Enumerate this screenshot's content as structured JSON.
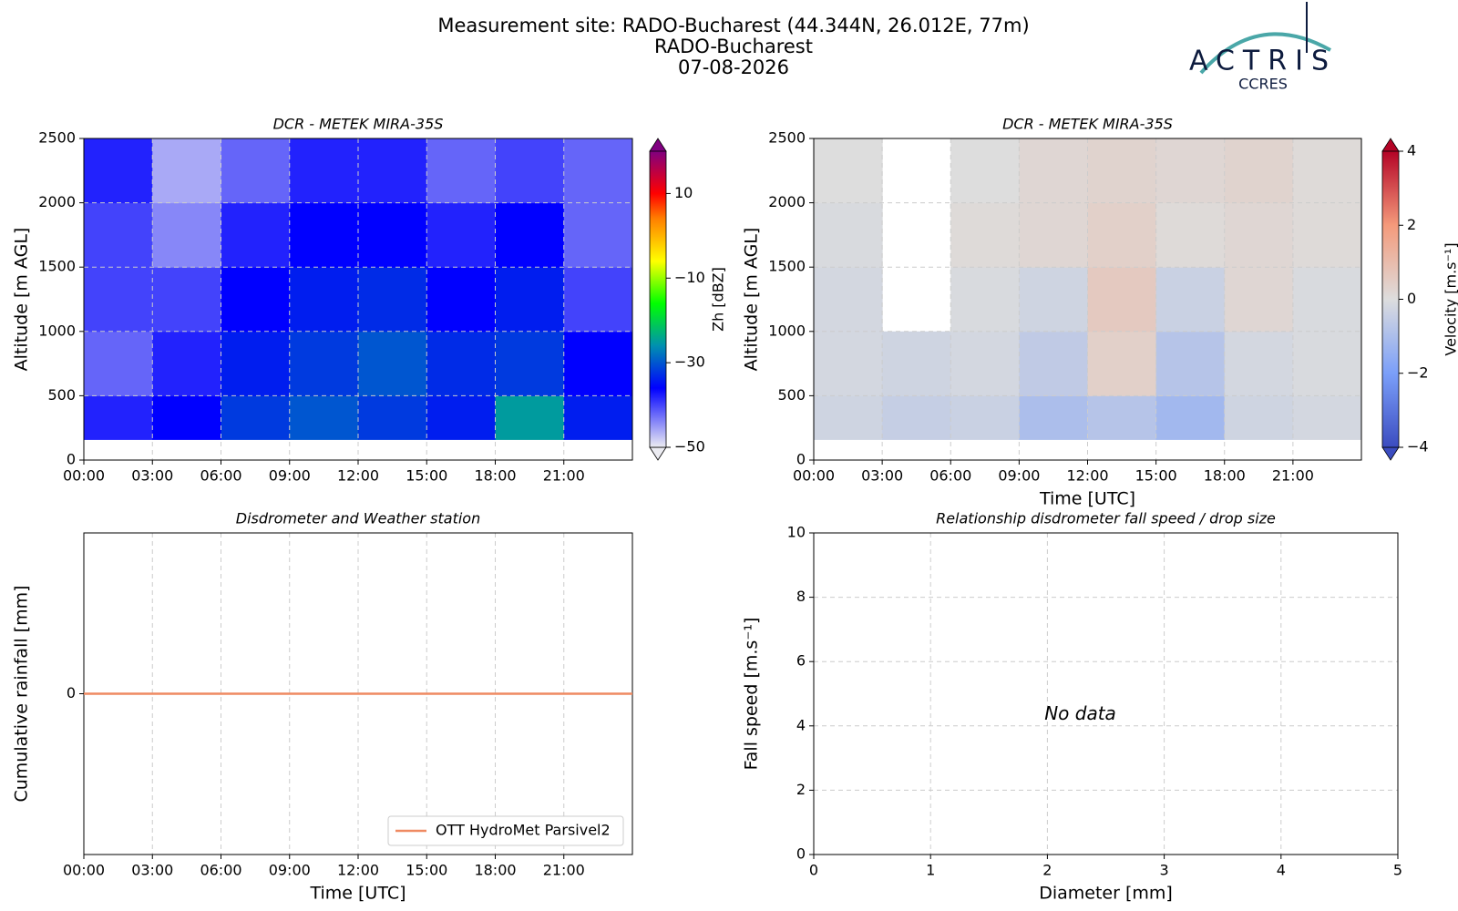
{
  "header": {
    "title": "Measurement site: RADO-Bucharest (44.344N, 26.012E, 77m)",
    "subtitle": "RADO-Bucharest",
    "date": "07-08-2026"
  },
  "logo": {
    "name": "ACTRIS",
    "sub": "CCRES"
  },
  "chart_data": [
    {
      "type": "heatmap",
      "title": "DCR - METEK MIRA-35S",
      "y_label": "Altitude [m AGL]",
      "xlim": [
        0,
        24
      ],
      "xticks": [
        {
          "value": 0,
          "label": "00:00"
        },
        {
          "value": 3,
          "label": "03:00"
        },
        {
          "value": 6,
          "label": "06:00"
        },
        {
          "value": 9,
          "label": "09:00"
        },
        {
          "value": 12,
          "label": "12:00"
        },
        {
          "value": 15,
          "label": "15:00"
        },
        {
          "value": 18,
          "label": "18:00"
        },
        {
          "value": 21,
          "label": "21:00"
        }
      ],
      "ylim": [
        0,
        2500
      ],
      "yticks": [
        0,
        500,
        1000,
        1500,
        2000,
        2500
      ],
      "grid": true,
      "x_bins": [
        0,
        3,
        6,
        9,
        12,
        15,
        18,
        21,
        24
      ],
      "y_bins": [
        160,
        500,
        1000,
        1500,
        2000,
        2500
      ],
      "values": [
        [
          -38,
          -36,
          -32,
          -30,
          -32,
          -34,
          -25,
          -34
        ],
        [
          -42,
          -38,
          -34,
          -32,
          -30,
          -33,
          -32,
          -36
        ],
        [
          -40,
          -40,
          -36,
          -34,
          -33,
          -36,
          -34,
          -40
        ],
        [
          -40,
          -44,
          -38,
          -36,
          -36,
          -38,
          -36,
          -42
        ],
        [
          -38,
          -46,
          -42,
          -38,
          -38,
          -42,
          -40,
          -42
        ]
      ],
      "colorbar": {
        "label": "Zh [dBZ]",
        "lim": [
          -50,
          20
        ],
        "ticks": [
          {
            "value": -50,
            "label": "−50"
          },
          {
            "value": -30,
            "label": "−30"
          },
          {
            "value": -10,
            "label": "−10"
          },
          10
        ],
        "colors": [
          [
            -50,
            "#ececf2"
          ],
          [
            -36,
            "#0000ff"
          ],
          [
            -26,
            "#0090b0"
          ],
          [
            -16,
            "#00ff00"
          ],
          [
            -6,
            "#ffff00"
          ],
          [
            4,
            "#ff8000"
          ],
          [
            10,
            "#ff0000"
          ],
          [
            20,
            "#800080"
          ]
        ]
      }
    },
    {
      "type": "heatmap",
      "title": "DCR - METEK MIRA-35S",
      "y_label": "Altitude [m AGL]",
      "x_label": "Time [UTC]",
      "xlim": [
        0,
        24
      ],
      "xticks": [
        {
          "value": 0,
          "label": "00:00"
        },
        {
          "value": 3,
          "label": "03:00"
        },
        {
          "value": 6,
          "label": "06:00"
        },
        {
          "value": 9,
          "label": "09:00"
        },
        {
          "value": 12,
          "label": "12:00"
        },
        {
          "value": 15,
          "label": "15:00"
        },
        {
          "value": 18,
          "label": "18:00"
        },
        {
          "value": 21,
          "label": "21:00"
        }
      ],
      "ylim": [
        0,
        2500
      ],
      "yticks": [
        0,
        500,
        1000,
        1500,
        2000,
        2500
      ],
      "grid": true,
      "x_bins": [
        0,
        3,
        6,
        9,
        12,
        15,
        18,
        21,
        24
      ],
      "y_bins": [
        160,
        500,
        1000,
        1500,
        2000,
        2500
      ],
      "values": [
        [
          -0.3,
          -0.5,
          -0.4,
          -1.0,
          -0.8,
          -1.2,
          -0.3,
          -0.2
        ],
        [
          -0.2,
          -0.3,
          -0.2,
          -0.6,
          0.4,
          -0.8,
          -0.2,
          -0.1
        ],
        [
          -0.2,
          null,
          -0.1,
          -0.3,
          0.6,
          -0.4,
          0.2,
          -0.1
        ],
        [
          -0.1,
          null,
          0.1,
          0.2,
          0.4,
          0.1,
          0.2,
          0.1
        ],
        [
          0.0,
          null,
          0.0,
          0.2,
          0.3,
          0.2,
          0.3,
          0.1
        ]
      ],
      "colorbar": {
        "label": "Velocity [m.s⁻¹]",
        "lim": [
          -4,
          4
        ],
        "ticks": [
          {
            "value": -4,
            "label": "−4"
          },
          {
            "value": -2,
            "label": "−2"
          },
          0,
          2,
          4
        ],
        "colors": [
          [
            -4,
            "#3b4cc0"
          ],
          [
            -2,
            "#7b9ff9"
          ],
          [
            0,
            "#dddddd"
          ],
          [
            2,
            "#f49a7b"
          ],
          [
            4,
            "#b40426"
          ]
        ]
      }
    },
    {
      "type": "line",
      "title": "Disdrometer and Weather station",
      "y_label": "Cumulative rainfall [mm]",
      "x_label": "Time [UTC]",
      "xlim": [
        0,
        24
      ],
      "xticks": [
        {
          "value": 0,
          "label": "00:00"
        },
        {
          "value": 3,
          "label": "03:00"
        },
        {
          "value": 6,
          "label": "06:00"
        },
        {
          "value": 9,
          "label": "09:00"
        },
        {
          "value": 12,
          "label": "12:00"
        },
        {
          "value": 15,
          "label": "15:00"
        },
        {
          "value": 18,
          "label": "18:00"
        },
        {
          "value": 21,
          "label": "21:00"
        }
      ],
      "ylim": [
        -0.055,
        0.055
      ],
      "yticks": [
        0
      ],
      "grid": true,
      "legend": "lower right",
      "x": [
        0,
        24
      ],
      "series": [
        {
          "name": "OTT HydroMet Parsivel2",
          "color": "#ef8a62",
          "values": [
            0,
            0
          ]
        }
      ]
    },
    {
      "type": "scatter",
      "title": "Relationship disdrometer fall speed / drop size",
      "y_label": "Fall speed [m.s⁻¹]",
      "x_label": "Diameter [mm]",
      "xlim": [
        0,
        5
      ],
      "xticks": [
        0,
        1,
        2,
        3,
        4,
        5
      ],
      "ylim": [
        0,
        10
      ],
      "yticks": [
        0,
        2,
        4,
        6,
        8,
        10
      ],
      "grid": true,
      "annotation": "No data"
    }
  ]
}
